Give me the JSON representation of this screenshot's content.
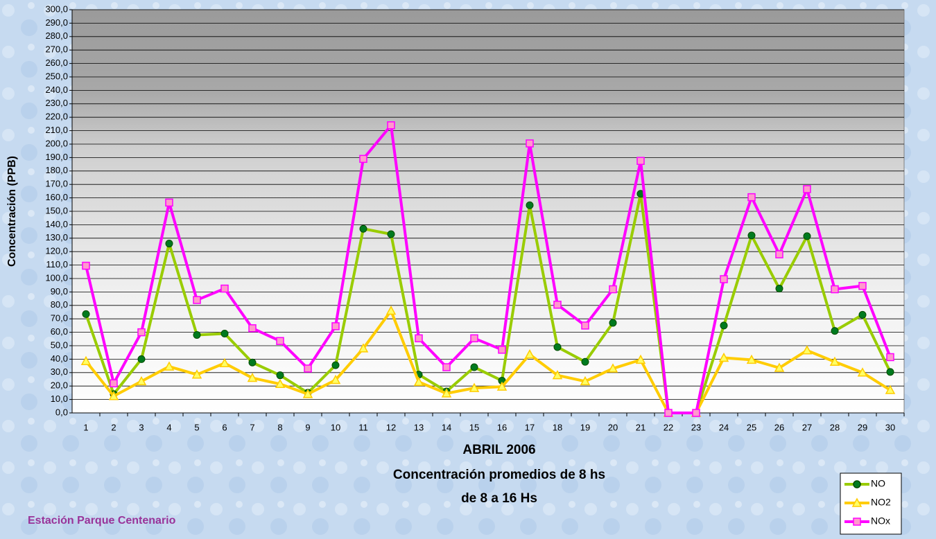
{
  "chart_data": {
    "type": "line",
    "y_label": "Concentración (PPB)",
    "title_lines": [
      "ABRIL 2006",
      "Concentración promedios de 8 hs",
      "de 8 a 16 Hs"
    ],
    "footer": "Estación Parque Centenario",
    "categories": [
      "1",
      "2",
      "3",
      "4",
      "5",
      "6",
      "7",
      "8",
      "9",
      "10",
      "11",
      "12",
      "13",
      "14",
      "15",
      "16",
      "17",
      "18",
      "19",
      "20",
      "21",
      "22",
      "23",
      "24",
      "25",
      "26",
      "27",
      "28",
      "29",
      "30"
    ],
    "series": [
      {
        "name": "NO",
        "color": "#99cc00",
        "marker": "circle",
        "marker_color": "#007a1f",
        "values": [
          73.5,
          14,
          40,
          126,
          58,
          59,
          37.5,
          28,
          15,
          35.5,
          137,
          133,
          28.5,
          16,
          34,
          24,
          154.5,
          49,
          38,
          67,
          163,
          0,
          0,
          65,
          132,
          92.5,
          131.5,
          61,
          73,
          30.5
        ]
      },
      {
        "name": "NO2",
        "color": "#ffcc00",
        "marker": "triangle",
        "marker_color": "#ffff66",
        "values": [
          38.5,
          12.5,
          23.5,
          34.5,
          28.5,
          37,
          26,
          21.5,
          14,
          24.5,
          48,
          76,
          23,
          14.5,
          18.5,
          19.5,
          43.5,
          28,
          23.5,
          33,
          39.5,
          0,
          0,
          41,
          39.5,
          33.5,
          46.5,
          38,
          30,
          17
        ]
      },
      {
        "name": "NOx",
        "color": "#ff00ff",
        "marker": "square",
        "marker_color": "#ff99cc",
        "values": [
          109.5,
          22,
          60,
          156.5,
          84,
          92.5,
          63,
          53.5,
          33,
          64.5,
          189,
          214,
          55.5,
          34,
          55.5,
          47,
          200.5,
          80.5,
          65,
          92,
          187.5,
          0,
          0,
          99.5,
          160.5,
          118,
          166.5,
          92,
          94.5,
          41.5
        ]
      }
    ],
    "ylim": [
      0,
      300
    ],
    "yticks": [
      {
        "value": 0,
        "label": "0,0"
      },
      {
        "value": 10,
        "label": "10,0"
      },
      {
        "value": 20,
        "label": "20,0"
      },
      {
        "value": 30,
        "label": "30,0"
      },
      {
        "value": 40,
        "label": "40,0"
      },
      {
        "value": 50,
        "label": "50,0"
      },
      {
        "value": 60,
        "label": "60,0"
      },
      {
        "value": 70,
        "label": "70,0"
      },
      {
        "value": 80,
        "label": "80,0"
      },
      {
        "value": 90,
        "label": "90,0"
      },
      {
        "value": 100,
        "label": "100,0"
      },
      {
        "value": 110,
        "label": "110,0"
      },
      {
        "value": 120,
        "label": "120,0"
      },
      {
        "value": 130,
        "label": "130,0"
      },
      {
        "value": 140,
        "label": "140,0"
      },
      {
        "value": 150,
        "label": "150,0"
      },
      {
        "value": 160,
        "label": "160,0"
      },
      {
        "value": 170,
        "label": "170,0"
      },
      {
        "value": 180,
        "label": "180,0"
      },
      {
        "value": 190,
        "label": "190,0"
      },
      {
        "value": 200,
        "label": "200,0"
      },
      {
        "value": 210,
        "label": "210,0"
      },
      {
        "value": 220,
        "label": "220,0"
      },
      {
        "value": 230,
        "label": "230,0"
      },
      {
        "value": 240,
        "label": "240,0"
      },
      {
        "value": 250,
        "label": "250,0"
      },
      {
        "value": 260,
        "label": "260,0"
      },
      {
        "value": 270,
        "label": "270,0"
      },
      {
        "value": 280,
        "label": "280,0"
      },
      {
        "value": 290,
        "label": "290,0"
      },
      {
        "value": 300,
        "label": "300,0"
      }
    ],
    "grid": true,
    "legend": "bottom-right"
  }
}
